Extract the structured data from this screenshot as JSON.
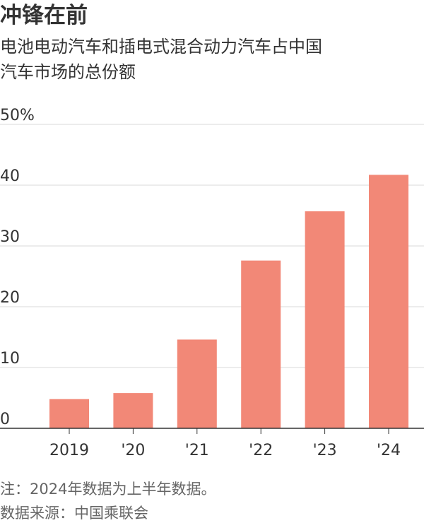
{
  "title": "冲锋在前",
  "subtitle_lines": [
    "电池电动汽车和插电式混合动力汽车占中国",
    "汽车市场的总份额"
  ],
  "notes": {
    "note": "注：2024年数据为上半年数据。",
    "source": "数据来源：中国乘联会"
  },
  "colors": {
    "bar": "#f28877",
    "grid": "#d9d9d9",
    "axis": "#333333",
    "text": "#333333"
  },
  "chart_data": {
    "type": "bar",
    "categories": [
      "2019",
      "'20",
      "'21",
      "'22",
      "'23",
      "'24"
    ],
    "values": [
      4.8,
      5.8,
      14.6,
      27.6,
      35.7,
      41.7
    ],
    "ylim": [
      0,
      50
    ],
    "yticks": [
      0,
      10,
      20,
      30,
      40,
      50
    ],
    "ytick_labels": [
      "0",
      "10",
      "20",
      "30",
      "40",
      "50%"
    ],
    "grid": true
  }
}
